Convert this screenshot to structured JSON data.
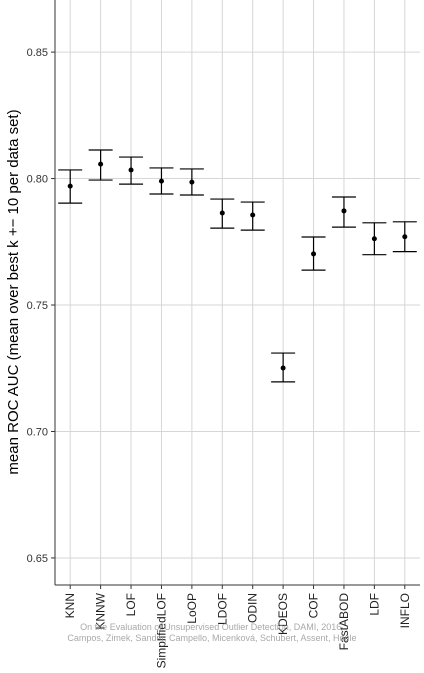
{
  "chart_data": {
    "type": "errorbar",
    "y_label": "mean ROC AUC (mean over best k +− 10 per data set)",
    "source": "On the Evaluation of Unsupervised Outlier Detection, DAMI, 2016. Campos, Zimek, Sander, Campello, Micenková, Schubert, Assent, Houle",
    "categories": [
      "KNN",
      "KNNW",
      "LOF",
      "SimplifiedLOF",
      "LoOP",
      "LDOF",
      "ODIN",
      "KDEOS",
      "COF",
      "FastABOD",
      "LDF",
      "INFLO"
    ],
    "values": [
      0.797,
      0.8057,
      0.8034,
      0.799,
      0.7986,
      0.7864,
      0.7856,
      0.7251,
      0.7702,
      0.7872,
      0.7762,
      0.777
    ],
    "lower": [
      0.7903,
      0.7994,
      0.7978,
      0.7939,
      0.7935,
      0.7804,
      0.7796,
      0.7196,
      0.7638,
      0.7808,
      0.7699,
      0.7711
    ],
    "upper": [
      0.8034,
      0.8113,
      0.8085,
      0.8042,
      0.8038,
      0.7919,
      0.7907,
      0.731,
      0.7769,
      0.7927,
      0.7825,
      0.7829
    ],
    "color": "#000000",
    "ylim": [
      0.6393,
      0.8706
    ],
    "yticks": [
      {
        "value": 0.65,
        "label": "0.65"
      },
      {
        "value": 0.7,
        "label": "0.70"
      },
      {
        "value": 0.75,
        "label": "0.75"
      },
      {
        "value": 0.8,
        "label": "0.80"
      },
      {
        "value": 0.85,
        "label": "0.85"
      }
    ],
    "grid": true
  }
}
